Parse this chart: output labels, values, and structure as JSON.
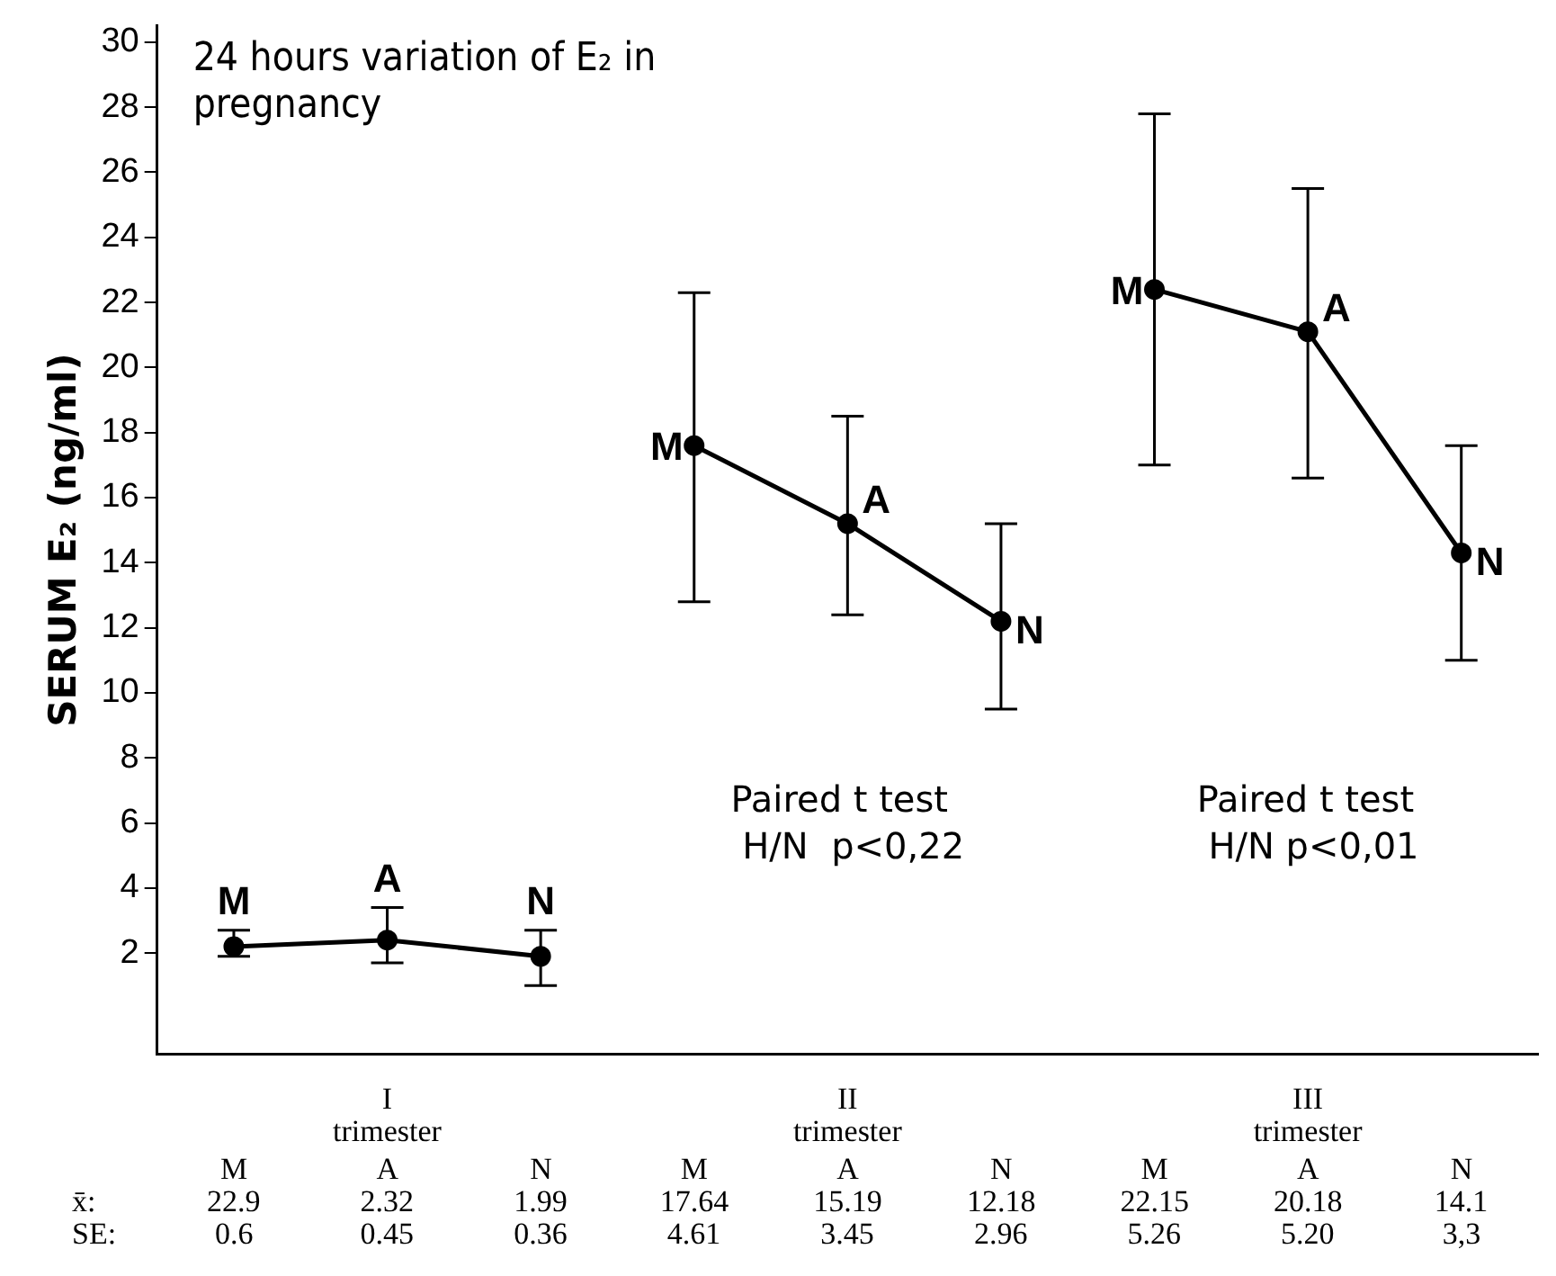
{
  "chart_data": {
    "type": "line",
    "title": "24 hours variation of E₂ in pregnancy",
    "ylabel": "SERUM E₂ (ng/ml)",
    "categories": [
      "M",
      "A",
      "N",
      "M",
      "A",
      "N",
      "M",
      "A",
      "N"
    ],
    "ylim": [
      -1.1,
      30.5
    ],
    "yticks": [
      2,
      4,
      6,
      8,
      10,
      12,
      14,
      16,
      18,
      20,
      22,
      24,
      26,
      28,
      30
    ],
    "marker": "circle",
    "line_style": "solid",
    "series": [
      {
        "color": "#000000",
        "values": [
          2.2,
          2.4,
          1.9,
          null,
          null,
          null,
          null,
          null,
          null
        ],
        "errors": [
          [
            1.9,
            2.7
          ],
          [
            1.7,
            3.4
          ],
          [
            1.0,
            2.7
          ],
          null,
          null,
          null,
          null,
          null,
          null
        ]
      },
      {
        "color": "#000000",
        "values": [
          null,
          null,
          null,
          17.6,
          15.2,
          12.2,
          null,
          null,
          null
        ],
        "errors": [
          null,
          null,
          null,
          [
            12.8,
            22.3
          ],
          [
            12.4,
            18.5
          ],
          [
            9.5,
            15.2
          ],
          null,
          null,
          null
        ]
      },
      {
        "color": "#000000",
        "values": [
          null,
          null,
          null,
          null,
          null,
          null,
          22.4,
          21.1,
          14.3
        ],
        "errors": [
          null,
          null,
          null,
          null,
          null,
          null,
          [
            17.0,
            27.8
          ],
          [
            16.6,
            25.5
          ],
          [
            11.0,
            17.6
          ]
        ]
      }
    ],
    "annotations": [
      "Paired t test\n H/N  p<0,22",
      "Paired t test\n H/N p<0,01",
      "I trimester",
      "II trimester",
      "III trimester",
      "x̄:",
      "SE:",
      "22.9",
      "2.32",
      "1.99",
      "17.64",
      "15.19",
      "12.18",
      "22.15",
      "20.18",
      "14.1",
      "0.6",
      "0.45",
      "0.36",
      "4.61",
      "3.45",
      "2.96",
      "5.26",
      "5.20",
      "3,3"
    ]
  }
}
